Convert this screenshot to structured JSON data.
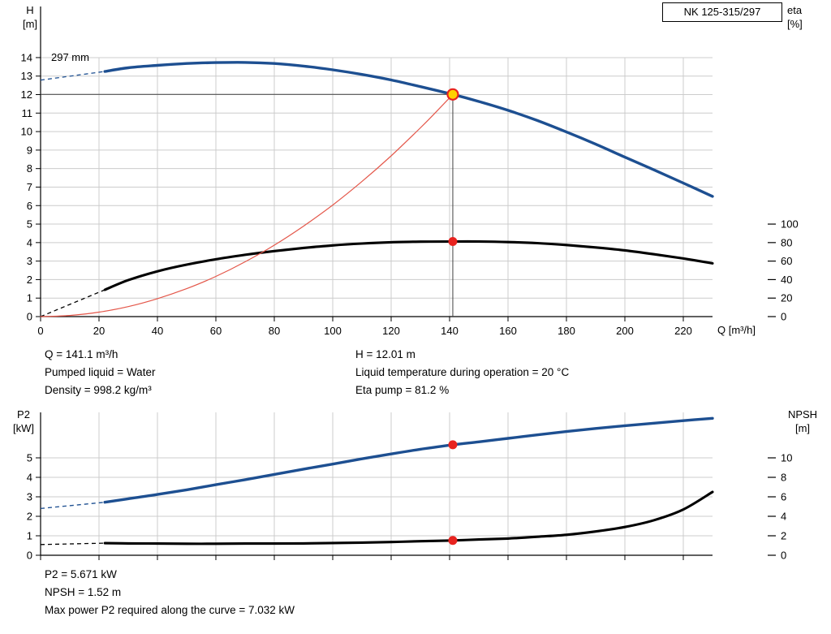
{
  "pump": {
    "model_label": "NK 125-315/297",
    "impeller_label": "297 mm"
  },
  "info_top": {
    "left": [
      "Q = 141.1 m³/h",
      "Pumped liquid = Water",
      "Density = 998.2 kg/m³"
    ],
    "right": [
      "H = 12.01 m",
      "Liquid temperature during operation = 20 °C",
      "Eta pump = 81.2 %"
    ]
  },
  "info_bottom": [
    "P2 = 5.671 kW",
    "NPSH = 1.52 m",
    "Max power P2 required along the curve = 7.032 kW"
  ],
  "chart_data": [
    {
      "type": "line",
      "title": "NK 125-315/297",
      "x_title": "Q [m³/h]",
      "y_left_title": [
        "H",
        "[m]"
      ],
      "y_right_title": [
        "eta",
        "[%]"
      ],
      "x_max": 230,
      "x_ticks": [
        0,
        20,
        40,
        60,
        80,
        100,
        120,
        140,
        160,
        180,
        200,
        220
      ],
      "y_left_max": 14,
      "y_left_ticks": [
        0,
        1,
        2,
        3,
        4,
        5,
        6,
        7,
        8,
        9,
        10,
        11,
        12,
        13,
        14
      ],
      "y_right_ticks": [
        0,
        20,
        40,
        60,
        80,
        100
      ],
      "y_right_per_left": 20,
      "grid_color": "#cccccc",
      "axis_color": "#000000",
      "crosshair_color": "#404040",
      "duty_point": {
        "q": 141.1,
        "h": 12.01,
        "eta_pct": 81.2
      },
      "series": [
        {
          "name": "head-curve-297mm",
          "color": "#1d4f91",
          "width": 3.4,
          "axis": "left",
          "lead": [
            [
              0,
              12.78
            ],
            [
              22,
              13.25
            ]
          ],
          "points": [
            [
              22,
              13.25
            ],
            [
              30,
              13.45
            ],
            [
              40,
              13.58
            ],
            [
              50,
              13.68
            ],
            [
              60,
              13.73
            ],
            [
              70,
              13.74
            ],
            [
              80,
              13.68
            ],
            [
              90,
              13.54
            ],
            [
              100,
              13.34
            ],
            [
              110,
              13.09
            ],
            [
              120,
              12.79
            ],
            [
              130,
              12.43
            ],
            [
              141.1,
              12.01
            ],
            [
              150,
              11.63
            ],
            [
              160,
              11.15
            ],
            [
              170,
              10.6
            ],
            [
              180,
              9.98
            ],
            [
              190,
              9.32
            ],
            [
              200,
              8.62
            ],
            [
              210,
              7.93
            ],
            [
              220,
              7.22
            ],
            [
              230,
              6.5
            ]
          ]
        },
        {
          "name": "efficiency-curve",
          "color": "#000000",
          "width": 3.1,
          "axis": "right",
          "lead": [
            [
              0,
              0
            ],
            [
              22,
              29
            ]
          ],
          "points": [
            [
              22,
              29
            ],
            [
              30,
              39.4
            ],
            [
              40,
              49
            ],
            [
              50,
              56.2
            ],
            [
              60,
              62
            ],
            [
              70,
              66.8
            ],
            [
              80,
              70.8
            ],
            [
              90,
              74.2
            ],
            [
              100,
              77
            ],
            [
              110,
              79
            ],
            [
              120,
              80.4
            ],
            [
              130,
              81
            ],
            [
              141.1,
              81.2
            ],
            [
              150,
              81.2
            ],
            [
              160,
              80.6
            ],
            [
              170,
              79.4
            ],
            [
              180,
              77.4
            ],
            [
              190,
              74.8
            ],
            [
              200,
              71.6
            ],
            [
              210,
              67.4
            ],
            [
              220,
              62.8
            ],
            [
              230,
              57.6
            ]
          ]
        },
        {
          "name": "system-curve",
          "color": "#e4574a",
          "width": 1.2,
          "axis": "left",
          "points": [
            [
              0,
              0
            ],
            [
              10,
              0.06
            ],
            [
              20,
              0.24
            ],
            [
              30,
              0.54
            ],
            [
              40,
              0.97
            ],
            [
              50,
              1.51
            ],
            [
              60,
              2.17
            ],
            [
              70,
              2.96
            ],
            [
              80,
              3.86
            ],
            [
              90,
              4.89
            ],
            [
              100,
              6.03
            ],
            [
              110,
              7.3
            ],
            [
              120,
              8.69
            ],
            [
              130,
              10.2
            ],
            [
              135,
              11.0
            ],
            [
              141.1,
              12.01
            ]
          ]
        }
      ],
      "markers": [
        {
          "name": "duty-point",
          "x": 141.1,
          "y": 12.01,
          "axis": "left",
          "r": 6.5,
          "fill": "#ffd100",
          "stroke": "#e8231f",
          "sw": 2.2,
          "interactable": true
        },
        {
          "name": "efficiency-point",
          "x": 141.1,
          "y": 81.2,
          "axis": "right",
          "r": 5.5,
          "fill": "#e8231f"
        }
      ]
    },
    {
      "type": "line",
      "title": "",
      "x_title": "",
      "y_left_title": [
        "P2",
        "[kW]"
      ],
      "y_right_title": [
        "NPSH",
        "[m]"
      ],
      "x_max": 230,
      "x_ticks": [
        0,
        20,
        40,
        60,
        80,
        100,
        120,
        140,
        160,
        180,
        200,
        220
      ],
      "y_left_max": 7.3,
      "y_left_ticks": [
        0,
        1,
        2,
        3,
        4,
        5
      ],
      "y_right_ticks": [
        0,
        2,
        4,
        6,
        8,
        10
      ],
      "y_right_per_left": 2,
      "grid_color": "#cccccc",
      "axis_color": "#000000",
      "series": [
        {
          "name": "p2-curve",
          "color": "#1d4f91",
          "width": 3.4,
          "axis": "left",
          "lead": [
            [
              0,
              2.4
            ],
            [
              22,
              2.72
            ]
          ],
          "points": [
            [
              22,
              2.72
            ],
            [
              30,
              2.9
            ],
            [
              40,
              3.12
            ],
            [
              50,
              3.36
            ],
            [
              60,
              3.62
            ],
            [
              70,
              3.88
            ],
            [
              80,
              4.15
            ],
            [
              90,
              4.42
            ],
            [
              100,
              4.68
            ],
            [
              110,
              4.95
            ],
            [
              120,
              5.2
            ],
            [
              130,
              5.44
            ],
            [
              141.1,
              5.671
            ],
            [
              150,
              5.82
            ],
            [
              160,
              6.0
            ],
            [
              170,
              6.18
            ],
            [
              180,
              6.35
            ],
            [
              190,
              6.51
            ],
            [
              200,
              6.65
            ],
            [
              210,
              6.78
            ],
            [
              220,
              6.91
            ],
            [
              230,
              7.03
            ]
          ]
        },
        {
          "name": "npsh-curve",
          "color": "#000000",
          "width": 3.1,
          "axis": "right",
          "lead": [
            [
              0,
              1.1
            ],
            [
              22,
              1.24
            ]
          ],
          "points": [
            [
              22,
              1.24
            ],
            [
              30,
              1.22
            ],
            [
              40,
              1.2
            ],
            [
              50,
              1.18
            ],
            [
              60,
              1.18
            ],
            [
              70,
              1.2
            ],
            [
              80,
              1.2
            ],
            [
              90,
              1.22
            ],
            [
              100,
              1.26
            ],
            [
              110,
              1.3
            ],
            [
              120,
              1.36
            ],
            [
              130,
              1.44
            ],
            [
              141.1,
              1.52
            ],
            [
              150,
              1.62
            ],
            [
              160,
              1.72
            ],
            [
              170,
              1.9
            ],
            [
              180,
              2.1
            ],
            [
              190,
              2.44
            ],
            [
              200,
              2.9
            ],
            [
              210,
              3.6
            ],
            [
              220,
              4.7
            ],
            [
              230,
              6.5
            ]
          ]
        }
      ],
      "markers": [
        {
          "name": "p2-point",
          "x": 141.1,
          "y": 5.671,
          "axis": "left",
          "r": 5.5,
          "fill": "#e8231f"
        },
        {
          "name": "npsh-point",
          "x": 141.1,
          "y": 1.52,
          "axis": "right",
          "r": 5.5,
          "fill": "#e8231f"
        }
      ]
    }
  ]
}
